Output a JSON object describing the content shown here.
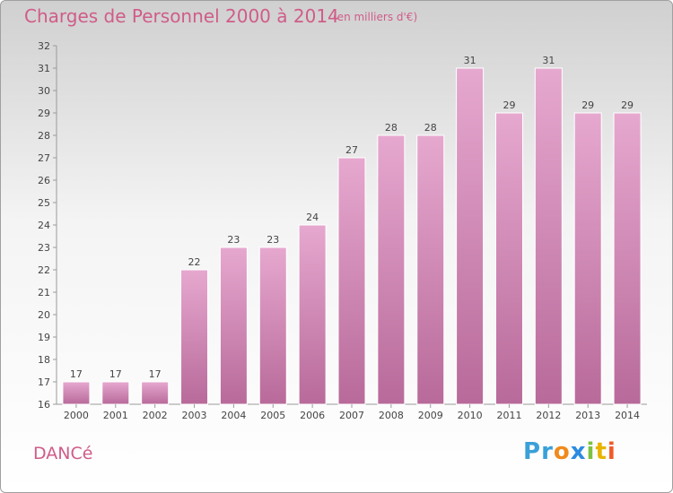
{
  "title": "Charges de Personnel 2000 à 2014",
  "subtitle": "(en milliers d'€)",
  "commune": "DANCé",
  "brand": {
    "letters": [
      "P",
      "r",
      "o",
      "x",
      "i",
      "t",
      "i"
    ],
    "colors": [
      "#3aa0d8",
      "#3aa0d8",
      "#f08a1c",
      "#2b8be0",
      "#7cc242",
      "#e8b400",
      "#f05a28"
    ]
  },
  "colors": {
    "bar_top": "#e6a8cf",
    "bar_bottom": "#b86a9a",
    "accent": "#d05c88"
  },
  "chart_data": {
    "type": "bar",
    "title": "Charges de Personnel 2000 à 2014",
    "categories": [
      "2000",
      "2001",
      "2002",
      "2003",
      "2004",
      "2005",
      "2006",
      "2007",
      "2008",
      "2009",
      "2010",
      "2011",
      "2012",
      "2013",
      "2014"
    ],
    "values": [
      17,
      17,
      17,
      22,
      23,
      23,
      24,
      27,
      28,
      28,
      31,
      29,
      31,
      29,
      29
    ],
    "ylim": [
      16,
      32
    ],
    "yticks": [
      16,
      17,
      18,
      19,
      20,
      21,
      22,
      23,
      24,
      25,
      26,
      27,
      28,
      29,
      30,
      31,
      32
    ],
    "grid": false,
    "data_labels": true
  }
}
